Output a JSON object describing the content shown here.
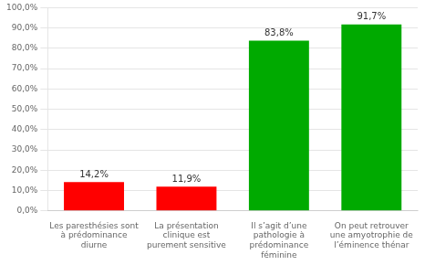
{
  "chart_data": {
    "type": "bar",
    "categories": [
      "Les paresthésies sont\nà prédominance\ndiurne",
      "La présentation\nclinique est\npurement sensitive",
      "Il s’agit d’une\npathologie à\nprédominance\nféminine",
      "On peut retrouver\nune amyotrophie de\nl’éminence thénar"
    ],
    "values": [
      14.2,
      11.9,
      83.8,
      91.7
    ],
    "value_labels": [
      "14,2%",
      "11,9%",
      "83,8%",
      "91,7%"
    ],
    "colors": [
      "#ff0000",
      "#ff0000",
      "#00aa00",
      "#00aa00"
    ],
    "ylim": [
      0,
      100
    ],
    "yticks": [
      {
        "value": 0,
        "label": "0,0%"
      },
      {
        "value": 10,
        "label": "10,0%"
      },
      {
        "value": 20,
        "label": "20,0%"
      },
      {
        "value": 30,
        "label": "30,0%"
      },
      {
        "value": 40,
        "label": "40,0%"
      },
      {
        "value": 50,
        "label": "50,0%"
      },
      {
        "value": 60,
        "label": "60,0%"
      },
      {
        "value": 70,
        "label": "70,0%"
      },
      {
        "value": 80,
        "label": "80,0%"
      },
      {
        "value": 90,
        "label": "90,0%"
      },
      {
        "value": 100,
        "label": "100,0%"
      }
    ],
    "grid": true,
    "data_labels": true
  }
}
